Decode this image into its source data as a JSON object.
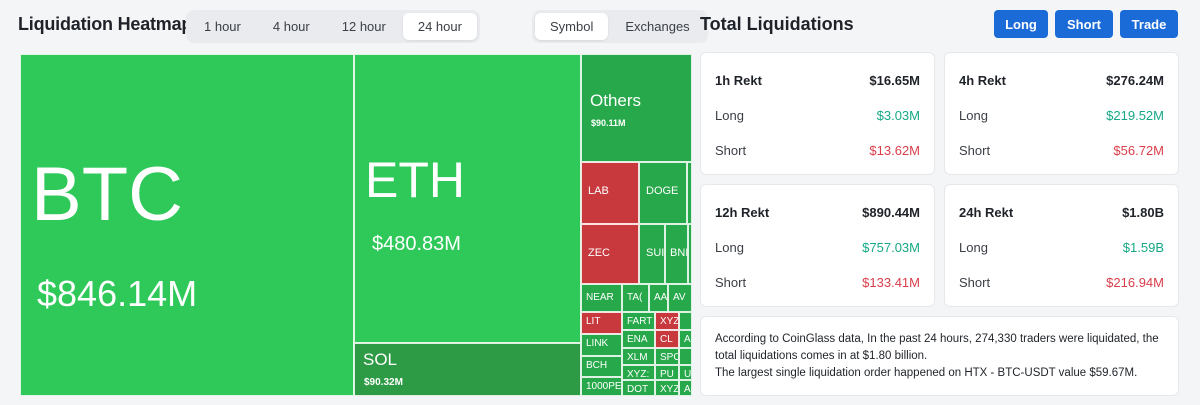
{
  "header": {
    "title": "Liquidation Heatmap",
    "time_tabs": [
      "1 hour",
      "4 hour",
      "12 hour",
      "24 hour"
    ],
    "active_time_tab": "24 hour",
    "type_tabs": [
      "Symbol",
      "Exchanges"
    ],
    "active_type_tab": "Symbol"
  },
  "panel": {
    "title": "Total Liquidations",
    "buttons": {
      "long": "Long",
      "short": "Short",
      "trade": "Trade"
    }
  },
  "heatmap": {
    "btc": {
      "symbol": "BTC",
      "value": "$846.14M"
    },
    "eth": {
      "symbol": "ETH",
      "value": "$480.83M"
    },
    "sol": {
      "symbol": "SOL",
      "value": "$90.32M"
    },
    "others": {
      "symbol": "Others",
      "value": "$90.11M"
    },
    "small": {
      "lab": "LAB",
      "doge": "DOGE",
      "zec": "ZEC",
      "sui": "SUI",
      "bnb": "BNI",
      "near": "NEAR",
      "tao": "TA(",
      "aa": "AA",
      "av": "AV",
      "lit": "LIT",
      "fart": "FART",
      "xyz1": "XYZ",
      "link": "LINK",
      "ena": "ENA",
      "cl": "CL",
      "bch": "BCH",
      "xlm": "XLM",
      "spo": "SPO",
      "onek": "1000PE",
      "xyz2": "XYZ:",
      "pu": "PU",
      "dot": "DOT",
      "xyz3": "XYZ",
      "a": "A",
      "u": "U",
      "a2": "A"
    }
  },
  "stats": [
    {
      "period": "1h Rekt",
      "total": "$16.65M",
      "long_label": "Long",
      "long": "$3.03M",
      "short_label": "Short",
      "short": "$13.62M"
    },
    {
      "period": "4h Rekt",
      "total": "$276.24M",
      "long_label": "Long",
      "long": "$219.52M",
      "short_label": "Short",
      "short": "$56.72M"
    },
    {
      "period": "12h Rekt",
      "total": "$890.44M",
      "long_label": "Long",
      "long": "$757.03M",
      "short_label": "Short",
      "short": "$133.41M"
    },
    {
      "period": "24h Rekt",
      "total": "$1.80B",
      "long_label": "Long",
      "long": "$1.59B",
      "short_label": "Short",
      "short": "$216.94M"
    }
  ],
  "info": {
    "line1": "According to CoinGlass data, In the past 24 hours, 274,330 traders were liquidated, the total liquidations comes in at $1.80 billion.",
    "line2": "The largest single liquidation order happened on HTX - BTC-USDT value $59.67M."
  },
  "colors": {
    "accent": "#1a6ad8",
    "long_green": "#16a886",
    "short_red": "#d93e4a",
    "heat_green": "#2fc95a",
    "heat_red": "#c8393e"
  }
}
